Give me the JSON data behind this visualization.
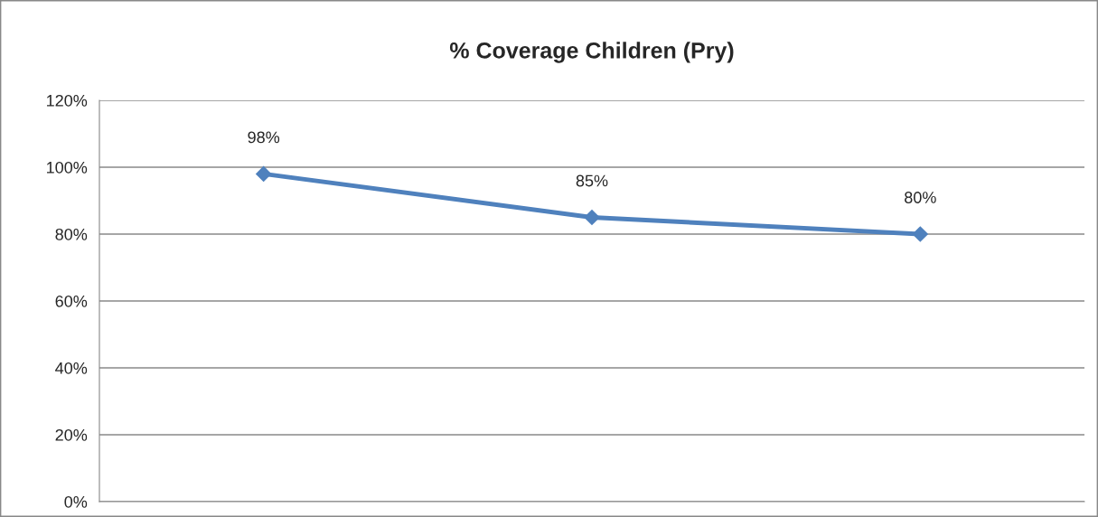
{
  "chart_data": {
    "type": "line",
    "title": "% Coverage Children (Pry)",
    "categories": [
      null,
      null,
      null
    ],
    "series": [
      {
        "color": "#4f81bd",
        "values": [
          98,
          85,
          80
        ],
        "value_labels": [
          "98%",
          "85%",
          "80%"
        ]
      }
    ],
    "ylim": [
      0,
      120
    ],
    "yticks": [
      {
        "value": 0,
        "label": "0%"
      },
      {
        "value": 20,
        "label": "20%"
      },
      {
        "value": 40,
        "label": "40%"
      },
      {
        "value": 60,
        "label": "60%"
      },
      {
        "value": 80,
        "label": "80%"
      },
      {
        "value": 100,
        "label": "100%"
      },
      {
        "value": 120,
        "label": "120%"
      }
    ],
    "grid": "y",
    "marker": "diamond",
    "line_style": "solid"
  }
}
